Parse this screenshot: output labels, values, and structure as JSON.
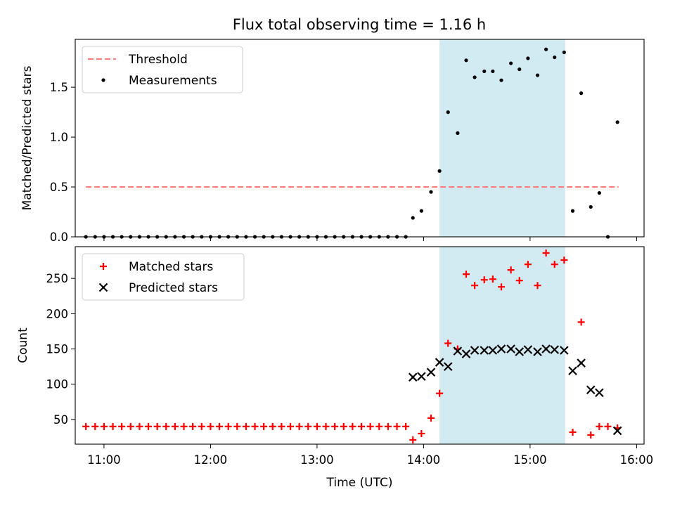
{
  "title": "Flux total observing time = 1.16 h",
  "colors": {
    "threshold": "#ff7f7f",
    "measurement": "#000000",
    "matched": "#ff0000",
    "predicted": "#000000",
    "span": "#add8e6"
  },
  "chart_data": [
    {
      "type": "scatter",
      "ylabel": "Matched/Predicted stars",
      "xlim": [
        10.73,
        16.07
      ],
      "ylim": [
        0,
        1.98
      ],
      "yticks": [
        0.0,
        0.5,
        1.0,
        1.5
      ],
      "ytick_labels": [
        "0.0",
        "0.5",
        "1.0",
        "1.5"
      ],
      "highlight_span": [
        14.15,
        15.33
      ],
      "legend": {
        "placement": "top-left",
        "entries": [
          "Threshold",
          "Measurements"
        ]
      },
      "threshold": {
        "name": "Threshold",
        "value": 0.5,
        "x_range": [
          10.83,
          15.83
        ]
      },
      "series": [
        {
          "name": "Measurements",
          "x": [
            10.83,
            10.9167,
            11.0,
            11.0833,
            11.1667,
            11.25,
            11.3333,
            11.4167,
            11.5,
            11.5833,
            11.6667,
            11.75,
            11.8333,
            11.9167,
            12.0,
            12.0833,
            12.1667,
            12.25,
            12.3333,
            12.4167,
            12.5,
            12.5833,
            12.6667,
            12.75,
            12.8333,
            12.9167,
            13.0,
            13.0833,
            13.1667,
            13.25,
            13.3333,
            13.4167,
            13.5,
            13.5833,
            13.6667,
            13.75,
            13.8333,
            13.9,
            13.98,
            14.07,
            14.15,
            14.23,
            14.32,
            14.4,
            14.48,
            14.57,
            14.65,
            14.73,
            14.82,
            14.9,
            14.98,
            15.07,
            15.15,
            15.23,
            15.32,
            15.4,
            15.48,
            15.57,
            15.65,
            15.73,
            15.82
          ],
          "y": [
            0,
            0,
            0,
            0,
            0,
            0,
            0,
            0,
            0,
            0,
            0,
            0,
            0,
            0,
            0,
            0,
            0,
            0,
            0,
            0,
            0,
            0,
            0,
            0,
            0,
            0,
            0,
            0,
            0,
            0,
            0,
            0,
            0,
            0,
            0,
            0,
            0,
            0.19,
            0.26,
            0.45,
            0.66,
            1.25,
            1.04,
            1.77,
            1.6,
            1.66,
            1.66,
            1.57,
            1.74,
            1.68,
            1.79,
            1.62,
            1.88,
            1.8,
            1.85,
            0.26,
            1.44,
            0.3,
            0.44,
            0.0,
            1.15
          ]
        }
      ]
    },
    {
      "type": "scatter",
      "xlabel": "Time (UTC)",
      "ylabel": "Count",
      "xlim": [
        10.73,
        16.07
      ],
      "ylim": [
        15,
        295
      ],
      "yticks": [
        50,
        100,
        150,
        200,
        250
      ],
      "ytick_labels": [
        "50",
        "100",
        "150",
        "200",
        "250"
      ],
      "xticks": [
        11,
        12,
        13,
        14,
        15,
        16
      ],
      "xtick_labels": [
        "11:00",
        "12:00",
        "13:00",
        "14:00",
        "15:00",
        "16:00"
      ],
      "highlight_span": [
        14.15,
        15.33
      ],
      "legend": {
        "placement": "top-left",
        "entries": [
          "Matched stars",
          "Predicted stars"
        ]
      },
      "series": [
        {
          "name": "Matched stars",
          "marker": "plus",
          "x": [
            10.83,
            10.9167,
            11.0,
            11.0833,
            11.1667,
            11.25,
            11.3333,
            11.4167,
            11.5,
            11.5833,
            11.6667,
            11.75,
            11.8333,
            11.9167,
            12.0,
            12.0833,
            12.1667,
            12.25,
            12.3333,
            12.4167,
            12.5,
            12.5833,
            12.6667,
            12.75,
            12.8333,
            12.9167,
            13.0,
            13.0833,
            13.1667,
            13.25,
            13.3333,
            13.4167,
            13.5,
            13.5833,
            13.6667,
            13.75,
            13.8333,
            13.9,
            13.98,
            14.07,
            14.15,
            14.23,
            14.32,
            14.4,
            14.48,
            14.57,
            14.65,
            14.73,
            14.82,
            14.9,
            14.98,
            15.07,
            15.15,
            15.23,
            15.32,
            15.4,
            15.48,
            15.57,
            15.65,
            15.73,
            15.82
          ],
          "y": [
            40,
            40,
            40,
            40,
            40,
            40,
            40,
            40,
            40,
            40,
            40,
            40,
            40,
            40,
            40,
            40,
            40,
            40,
            40,
            40,
            40,
            40,
            40,
            40,
            40,
            40,
            40,
            40,
            40,
            40,
            40,
            40,
            40,
            40,
            40,
            40,
            40,
            21,
            30,
            52,
            87,
            158,
            150,
            256,
            240,
            248,
            249,
            238,
            262,
            247,
            270,
            240,
            286,
            270,
            276,
            32,
            188,
            28,
            40,
            40,
            38
          ]
        },
        {
          "name": "Predicted stars",
          "marker": "x",
          "x": [
            13.9,
            13.98,
            14.07,
            14.15,
            14.23,
            14.32,
            14.4,
            14.48,
            14.57,
            14.65,
            14.73,
            14.82,
            14.9,
            14.98,
            15.07,
            15.15,
            15.23,
            15.32,
            15.4,
            15.48,
            15.57,
            15.65,
            15.82
          ],
          "y": [
            110,
            111,
            117,
            131,
            125,
            147,
            143,
            148,
            148,
            148,
            150,
            150,
            146,
            149,
            146,
            150,
            149,
            148,
            119,
            130,
            92,
            88,
            34
          ]
        }
      ]
    }
  ]
}
